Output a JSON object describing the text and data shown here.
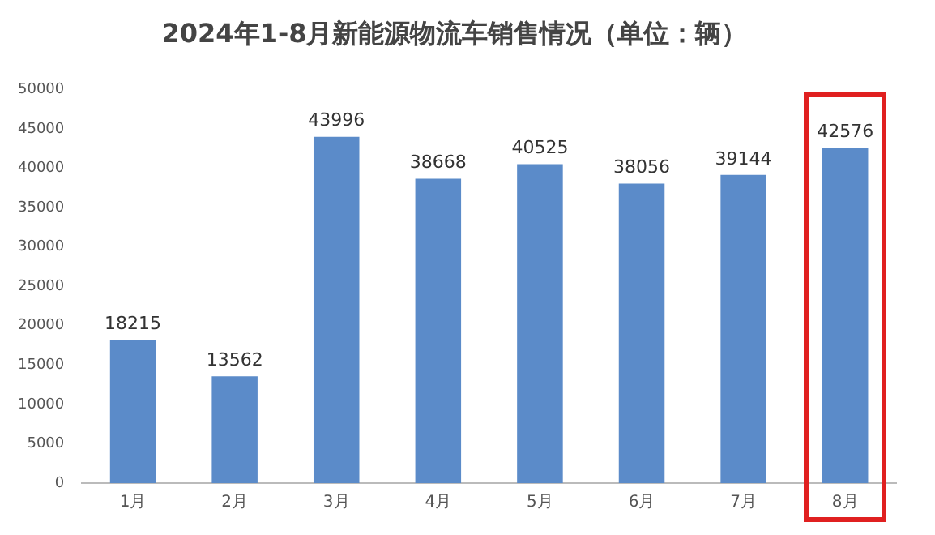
{
  "chart_data": {
    "type": "bar",
    "title": "2024年1-8月新能源物流车销售情况（单位：辆）",
    "categories": [
      "1月",
      "2月",
      "3月",
      "4月",
      "5月",
      "6月",
      "7月",
      "8月"
    ],
    "values": [
      18215,
      13562,
      43996,
      38668,
      40525,
      38056,
      39144,
      42576
    ],
    "color": "#5b8bc9",
    "ylim": [
      0,
      50000
    ],
    "yticks": [
      0,
      5000,
      10000,
      15000,
      20000,
      25000,
      30000,
      35000,
      40000,
      45000,
      50000
    ],
    "grid": false,
    "data_labels": true
  }
}
